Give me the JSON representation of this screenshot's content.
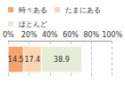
{
  "chart_data": {
    "type": "bar",
    "orientation": "horizontal",
    "stacked": true,
    "categories": [
      null
    ],
    "series": [
      {
        "name": "時々ある",
        "color": "#f2a36e",
        "values": [
          14.5
        ]
      },
      {
        "name": "たまにある",
        "color": "#fbd6b4",
        "values": [
          17.4
        ]
      },
      {
        "name": "ほとんど",
        "color": "#e6ecd8",
        "values": [
          38.9
        ]
      }
    ],
    "xlim": [
      0,
      100
    ],
    "xticks": [
      {
        "value": 0,
        "label": "0%"
      },
      {
        "value": 20,
        "label": "20%"
      },
      {
        "value": 40,
        "label": "40%"
      },
      {
        "value": 60,
        "label": "60%"
      },
      {
        "value": 80,
        "label": "80%"
      },
      {
        "value": 100,
        "label": "100%"
      }
    ],
    "grid": true,
    "data_labels": true,
    "tick_labels": "x",
    "legend": "top"
  }
}
